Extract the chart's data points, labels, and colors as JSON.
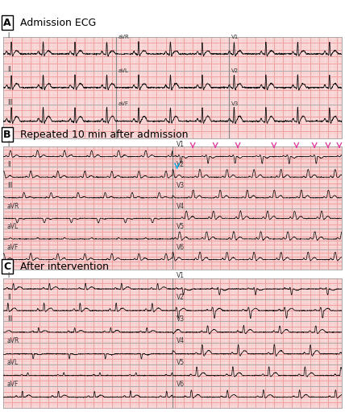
{
  "title_A": "Admission ECG",
  "title_B": "Repeated 10 min after admission",
  "title_C": "After intervention",
  "grid_color": "#f5b8b8",
  "major_color": "#f0a0a0",
  "bg_color": "#fde8e8",
  "ecg_color": "#111111",
  "border_color": "#aaaaaa",
  "pink_arrow_color": "#e040a0",
  "blue_arrow_color": "#00aaee",
  "label_color": "#333333"
}
